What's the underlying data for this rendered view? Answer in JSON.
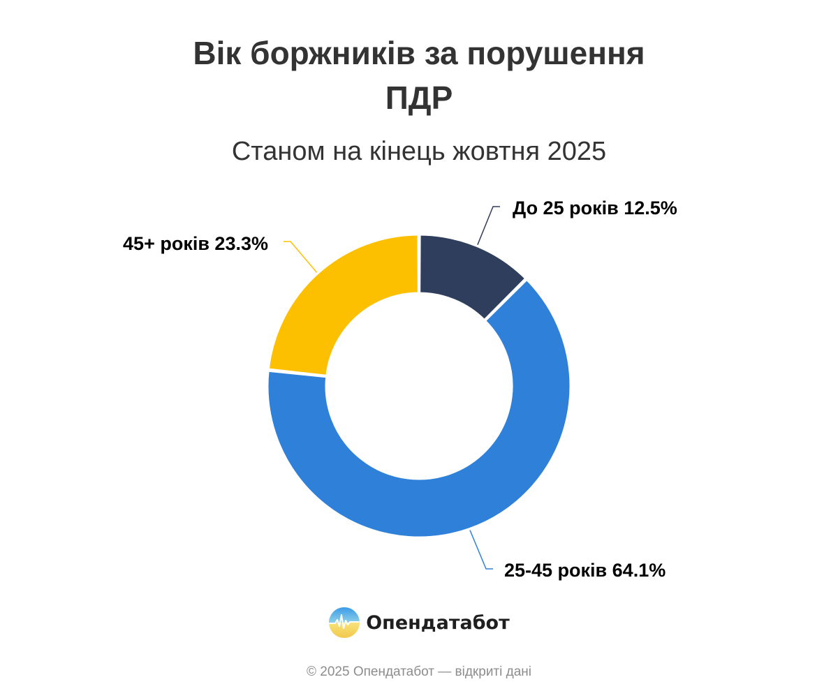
{
  "header": {
    "title_line1": "Вік боржників за порушення",
    "title_line2": "ПДР",
    "subtitle": "Станом на кінець жовтня 2025"
  },
  "chart_data": {
    "type": "pie",
    "subtype": "donut",
    "title": "Вік боржників за порушення ПДР",
    "subtitle": "Станом на кінець жовтня 2025",
    "slices": [
      {
        "label": "До 25 років",
        "value": 12.5,
        "display": "До 25 років 12.5%",
        "color": "#2f3e5c"
      },
      {
        "label": "25-45 років",
        "value": 64.1,
        "display": "25-45 років 64.1%",
        "color": "#2e80d9"
      },
      {
        "label": "45+ років",
        "value": 23.3,
        "display": "45+ років 23.3%",
        "color": "#fcc000"
      }
    ],
    "unit": "%",
    "legend": "none"
  },
  "brand": {
    "name": "Опендатабот",
    "logo_icon": "opendatabot-logo-icon"
  },
  "footer": {
    "text": "© 2025 Опендатабот — відкриті дані"
  }
}
